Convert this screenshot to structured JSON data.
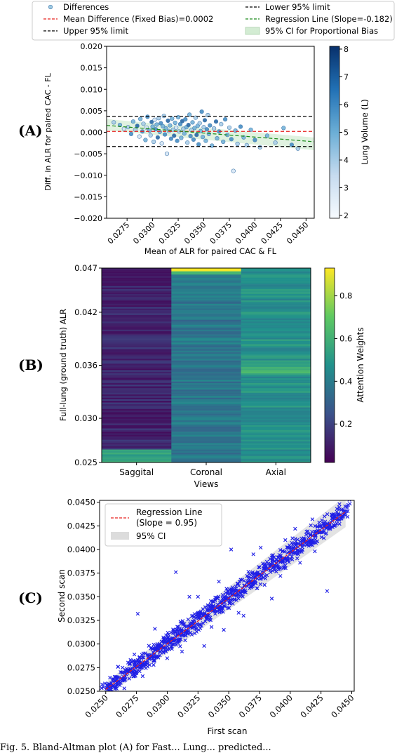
{
  "labels": {
    "a": "(A)",
    "b": "(B)",
    "c": "(C)"
  },
  "caption": "Fig. 5. Bland-Altman plot (A) for Fast... Lung... predicted...",
  "chart_data": [
    {
      "type": "scatter",
      "panel": "A",
      "xlabel": "Mean of ALR for paired CAC & FL",
      "ylabel": "Diff. in ALR for paired CAC - FL",
      "xlim": [
        0.0255,
        0.0458
      ],
      "ylim": [
        -0.02,
        0.02
      ],
      "xticks": [
        "0.0275",
        "0.0300",
        "0.0325",
        "0.0350",
        "0.0375",
        "0.0400",
        "0.0425",
        "0.0450"
      ],
      "xtick_values": [
        0.0275,
        0.03,
        0.0325,
        0.035,
        0.0375,
        0.04,
        0.0425,
        0.045
      ],
      "yticks": [
        "0.020",
        "0.015",
        "0.010",
        "0.005",
        "0.000",
        "−0.005",
        "−0.010",
        "−0.015",
        "−0.020"
      ],
      "ytick_values": [
        0.02,
        0.015,
        0.01,
        0.005,
        0.0,
        -0.005,
        -0.01,
        -0.015,
        -0.02
      ],
      "legend": [
        {
          "label": "Differences",
          "kind": "marker"
        },
        {
          "label": "Lower 95% limit",
          "kind": "black-dash"
        },
        {
          "label": "Mean Difference (Fixed Bias)=0.0002",
          "kind": "red-dash"
        },
        {
          "label": "Regression Line (Slope=-0.182)",
          "kind": "green-dash"
        },
        {
          "label": "Upper 95% limit",
          "kind": "black-dash"
        },
        {
          "label": "95% CI for Proportional Bias",
          "kind": "band"
        }
      ],
      "mean_difference": 0.0002,
      "upper_limit": 0.0037,
      "lower_limit": -0.0033,
      "regression": {
        "slope": -0.182,
        "x": [
          0.0255,
          0.0458
        ],
        "y": [
          0.0016,
          -0.0022
        ]
      },
      "colorbar": {
        "label": "Lung Volume (L)",
        "ticks": [
          "8",
          "7",
          "6",
          "5",
          "4",
          "3",
          "2"
        ],
        "tick_values": [
          8,
          7,
          6,
          5,
          4,
          3,
          2
        ],
        "range": [
          1.9,
          8.1
        ]
      },
      "points": [
        [
          0.0262,
          0.0023,
          4
        ],
        [
          0.0268,
          0.0017,
          5
        ],
        [
          0.0272,
          0.0008,
          3
        ],
        [
          0.0276,
          0.0012,
          4
        ],
        [
          0.0279,
          -0.0004,
          6
        ],
        [
          0.0281,
          0.0025,
          5
        ],
        [
          0.0283,
          0.0006,
          4
        ],
        [
          0.0285,
          0.0015,
          7
        ],
        [
          0.0287,
          -0.001,
          3
        ],
        [
          0.0288,
          0.0031,
          5
        ],
        [
          0.029,
          0.0002,
          6
        ],
        [
          0.0291,
          0.002,
          4
        ],
        [
          0.0293,
          -0.0018,
          5
        ],
        [
          0.0294,
          0.0011,
          3
        ],
        [
          0.0295,
          0.0036,
          6
        ],
        [
          0.0297,
          0.0004,
          5
        ],
        [
          0.0298,
          -0.0007,
          4
        ],
        [
          0.0299,
          0.0024,
          7
        ],
        [
          0.03,
          0.0013,
          5
        ],
        [
          0.0301,
          -0.0022,
          4
        ],
        [
          0.0302,
          0.0029,
          3
        ],
        [
          0.0303,
          0.0007,
          6
        ],
        [
          0.0304,
          0.0018,
          5
        ],
        [
          0.0305,
          -0.0012,
          7
        ],
        [
          0.0306,
          0.0033,
          4
        ],
        [
          0.0307,
          0.0001,
          5
        ],
        [
          0.0308,
          0.0021,
          6
        ],
        [
          0.0309,
          -0.0026,
          3
        ],
        [
          0.031,
          0.0014,
          5
        ],
        [
          0.0311,
          0.0038,
          4
        ],
        [
          0.0312,
          -0.0005,
          6
        ],
        [
          0.0313,
          0.0009,
          5
        ],
        [
          0.0314,
          -0.005,
          3
        ],
        [
          0.0315,
          0.0027,
          7
        ],
        [
          0.0316,
          0.0003,
          4
        ],
        [
          0.0317,
          0.0016,
          5
        ],
        [
          0.0318,
          -0.0015,
          6
        ],
        [
          0.0319,
          0.0032,
          5
        ],
        [
          0.032,
          0.0006,
          4
        ],
        [
          0.0321,
          -0.0008,
          7
        ],
        [
          0.0322,
          0.0022,
          5
        ],
        [
          0.0323,
          0.0011,
          3
        ],
        [
          0.0324,
          -0.002,
          6
        ],
        [
          0.0325,
          0.0035,
          5
        ],
        [
          0.0326,
          0.0002,
          4
        ],
        [
          0.0327,
          0.0019,
          6
        ],
        [
          0.0328,
          -0.0013,
          5
        ],
        [
          0.0329,
          0.0026,
          7
        ],
        [
          0.033,
          0.0008,
          4
        ],
        [
          0.0331,
          -0.0003,
          5
        ],
        [
          0.0332,
          0.003,
          6
        ],
        [
          0.0333,
          0.0012,
          5
        ],
        [
          0.0334,
          -0.0024,
          4
        ],
        [
          0.0335,
          0.0017,
          7
        ],
        [
          0.0336,
          0.0041,
          5
        ],
        [
          0.0337,
          -0.0009,
          6
        ],
        [
          0.0338,
          0.0005,
          4
        ],
        [
          0.0339,
          0.0023,
          5
        ],
        [
          0.034,
          -0.0017,
          6
        ],
        [
          0.0341,
          0.001,
          5
        ],
        [
          0.0342,
          0.0034,
          4
        ],
        [
          0.0343,
          -0.0006,
          7
        ],
        [
          0.0344,
          0.0015,
          5
        ],
        [
          0.0345,
          -0.0028,
          6
        ],
        [
          0.0346,
          0.0021,
          4
        ],
        [
          0.0347,
          0.0003,
          5
        ],
        [
          0.0348,
          0.0048,
          6
        ],
        [
          0.0349,
          -0.0011,
          5
        ],
        [
          0.035,
          0.0012,
          4
        ],
        [
          0.0351,
          0.0028,
          7
        ],
        [
          0.0352,
          -0.002,
          5
        ],
        [
          0.0353,
          0.0007,
          6
        ],
        [
          0.0354,
          0.004,
          4
        ],
        [
          0.0355,
          -0.0004,
          5
        ],
        [
          0.0356,
          0.0016,
          6
        ],
        [
          0.0358,
          -0.0031,
          5
        ],
        [
          0.036,
          0.0009,
          4
        ],
        [
          0.0362,
          0.0025,
          7
        ],
        [
          0.0363,
          -0.0014,
          5
        ],
        [
          0.0365,
          0.0002,
          6
        ],
        [
          0.0367,
          0.0019,
          4
        ],
        [
          0.0369,
          -0.0022,
          5
        ],
        [
          0.0371,
          0.003,
          6
        ],
        [
          0.0373,
          -0.0006,
          5
        ],
        [
          0.0375,
          0.0011,
          4
        ],
        [
          0.0377,
          -0.0016,
          6
        ],
        [
          0.0379,
          -0.009,
          3
        ],
        [
          0.0381,
          0.0004,
          5
        ],
        [
          0.0383,
          -0.0027,
          4
        ],
        [
          0.0386,
          0.0013,
          6
        ],
        [
          0.0389,
          -0.0012,
          5
        ],
        [
          0.0392,
          -0.003,
          4
        ],
        [
          0.0396,
          0.0006,
          5
        ],
        [
          0.04,
          -0.0018,
          6
        ],
        [
          0.0405,
          -0.0035,
          4
        ],
        [
          0.0412,
          -0.0008,
          5
        ],
        [
          0.042,
          -0.0024,
          4
        ],
        [
          0.0428,
          0.001,
          5
        ],
        [
          0.0436,
          -0.0029,
          6
        ],
        [
          0.0442,
          -0.0038,
          4
        ]
      ]
    },
    {
      "type": "heatmap",
      "panel": "B",
      "xlabel": "Views",
      "ylabel": "Full-lung (ground truth) ALR",
      "categories": [
        "Saggital",
        "Coronal",
        "Axial"
      ],
      "yticks": [
        "0.047",
        "0.042",
        "0.036",
        "0.030",
        "0.025"
      ],
      "ytick_values": [
        0.047,
        0.042,
        0.036,
        0.03,
        0.025
      ],
      "ylim": [
        0.025,
        0.047
      ],
      "rows": 120,
      "column_means": [
        0.12,
        0.38,
        0.48
      ],
      "colorbar": {
        "label": "Attention Weights",
        "ticks": [
          "0.8",
          "0.6",
          "0.4",
          "0.2"
        ],
        "tick_values": [
          0.8,
          0.6,
          0.4,
          0.2
        ],
        "range": [
          0.02,
          0.93
        ]
      }
    },
    {
      "type": "scatter",
      "panel": "C",
      "xlabel": "First scan",
      "ylabel": "Second scan",
      "xlim": [
        0.0245,
        0.0452
      ],
      "ylim": [
        0.025,
        0.0452
      ],
      "xticks": [
        "0.0250",
        "0.0275",
        "0.0300",
        "0.0325",
        "0.0350",
        "0.0375",
        "0.0400",
        "0.0425",
        "0.0450"
      ],
      "xtick_values": [
        0.025,
        0.0275,
        0.03,
        0.0325,
        0.035,
        0.0375,
        0.04,
        0.0425,
        0.045
      ],
      "yticks": [
        "0.0450",
        "0.0425",
        "0.0400",
        "0.0375",
        "0.0350",
        "0.0325",
        "0.0300",
        "0.0275",
        "0.0250"
      ],
      "ytick_values": [
        0.045,
        0.0425,
        0.04,
        0.0375,
        0.035,
        0.0325,
        0.03,
        0.0275,
        0.025
      ],
      "legend": [
        {
          "label": "Regression Line",
          "label2": "(Slope = 0.95)",
          "kind": "red-dash"
        },
        {
          "label": "95% CI",
          "kind": "band"
        }
      ],
      "regression": {
        "slope": 0.95,
        "x": [
          0.025,
          0.0445
        ],
        "y": [
          0.0252,
          0.044
        ]
      },
      "points": [
        [
          0.0252,
          0.0254
        ],
        [
          0.0256,
          0.0263
        ],
        [
          0.026,
          0.0257
        ],
        [
          0.0263,
          0.027
        ],
        [
          0.0266,
          0.0262
        ],
        [
          0.027,
          0.0279
        ],
        [
          0.0273,
          0.0268
        ],
        [
          0.0276,
          0.0283
        ],
        [
          0.0279,
          0.0275
        ],
        [
          0.0282,
          0.029
        ],
        [
          0.0284,
          0.0276
        ],
        [
          0.0287,
          0.0296
        ],
        [
          0.0289,
          0.0282
        ],
        [
          0.0292,
          0.03
        ],
        [
          0.0294,
          0.0288
        ],
        [
          0.0297,
          0.0305
        ],
        [
          0.0299,
          0.0292
        ],
        [
          0.0301,
          0.031
        ],
        [
          0.0303,
          0.0297
        ],
        [
          0.0305,
          0.0314
        ],
        [
          0.0307,
          0.0301
        ],
        [
          0.0309,
          0.0318
        ],
        [
          0.0311,
          0.0305
        ],
        [
          0.0313,
          0.0321
        ],
        [
          0.0315,
          0.0309
        ],
        [
          0.0317,
          0.0326
        ],
        [
          0.0319,
          0.0312
        ],
        [
          0.0321,
          0.033
        ],
        [
          0.0323,
          0.0316
        ],
        [
          0.0325,
          0.0333
        ],
        [
          0.0327,
          0.032
        ],
        [
          0.0329,
          0.0337
        ],
        [
          0.0331,
          0.0324
        ],
        [
          0.0333,
          0.0341
        ],
        [
          0.0335,
          0.0328
        ],
        [
          0.0337,
          0.0345
        ],
        [
          0.0339,
          0.0332
        ],
        [
          0.0341,
          0.0348
        ],
        [
          0.0343,
          0.0336
        ],
        [
          0.0345,
          0.0352
        ],
        [
          0.0347,
          0.034
        ],
        [
          0.0349,
          0.0356
        ],
        [
          0.0351,
          0.0344
        ],
        [
          0.0353,
          0.036
        ],
        [
          0.0355,
          0.0347
        ],
        [
          0.0357,
          0.0364
        ],
        [
          0.0359,
          0.0351
        ],
        [
          0.0361,
          0.0368
        ],
        [
          0.0363,
          0.0355
        ],
        [
          0.0365,
          0.0372
        ],
        [
          0.0367,
          0.0359
        ],
        [
          0.0369,
          0.0375
        ],
        [
          0.0372,
          0.0364
        ],
        [
          0.0375,
          0.0381
        ],
        [
          0.0378,
          0.037
        ],
        [
          0.0381,
          0.0387
        ],
        [
          0.0384,
          0.0376
        ],
        [
          0.0387,
          0.0392
        ],
        [
          0.039,
          0.0382
        ],
        [
          0.0394,
          0.0398
        ],
        [
          0.0398,
          0.0389
        ],
        [
          0.0402,
          0.0405
        ],
        [
          0.0406,
          0.0396
        ],
        [
          0.0411,
          0.0412
        ],
        [
          0.0416,
          0.0405
        ],
        [
          0.0422,
          0.0418
        ],
        [
          0.0428,
          0.0424
        ],
        [
          0.0434,
          0.0436
        ],
        [
          0.044,
          0.0448
        ],
        [
          0.0444,
          0.044
        ],
        [
          0.0307,
          0.0376
        ],
        [
          0.0352,
          0.04
        ],
        [
          0.0276,
          0.0332
        ],
        [
          0.0318,
          0.035
        ],
        [
          0.033,
          0.0298
        ],
        [
          0.0346,
          0.0315
        ],
        [
          0.0362,
          0.033
        ],
        [
          0.0385,
          0.0348
        ],
        [
          0.0396,
          0.041
        ],
        [
          0.0408,
          0.0386
        ],
        [
          0.043,
          0.0356
        ],
        [
          0.0418,
          0.0432
        ],
        [
          0.029,
          0.0316
        ],
        [
          0.03,
          0.0285
        ],
        [
          0.0342,
          0.0366
        ],
        [
          0.037,
          0.0395
        ],
        [
          0.026,
          0.0276
        ],
        [
          0.028,
          0.0266
        ],
        [
          0.0325,
          0.035
        ],
        [
          0.0358,
          0.0333
        ],
        [
          0.0376,
          0.0402
        ],
        [
          0.0392,
          0.0372
        ],
        [
          0.0312,
          0.0292
        ],
        [
          0.0336,
          0.0318
        ],
        [
          0.0404,
          0.0422
        ],
        [
          0.042,
          0.0398
        ]
      ]
    }
  ]
}
